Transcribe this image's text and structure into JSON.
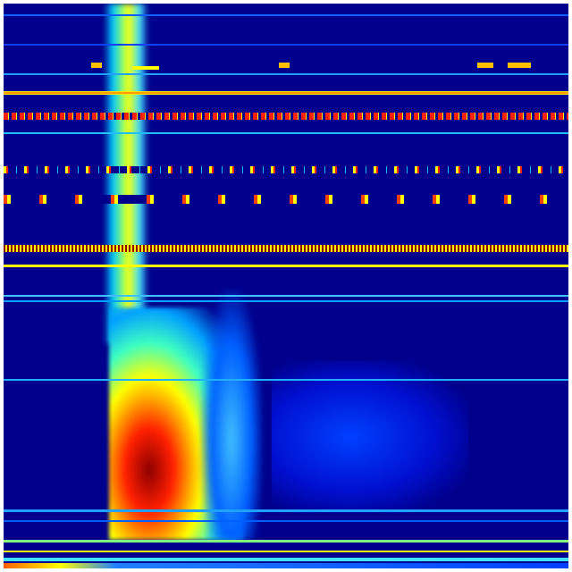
{
  "image": {
    "kind": "spectrogram",
    "colormap": "jet",
    "colors": {
      "background": "#00008c",
      "low": "#0000ff",
      "mid_low": "#00c8ff",
      "mid": "#ffff00",
      "high": "#ff3000",
      "peak": "#8c0000"
    }
  }
}
